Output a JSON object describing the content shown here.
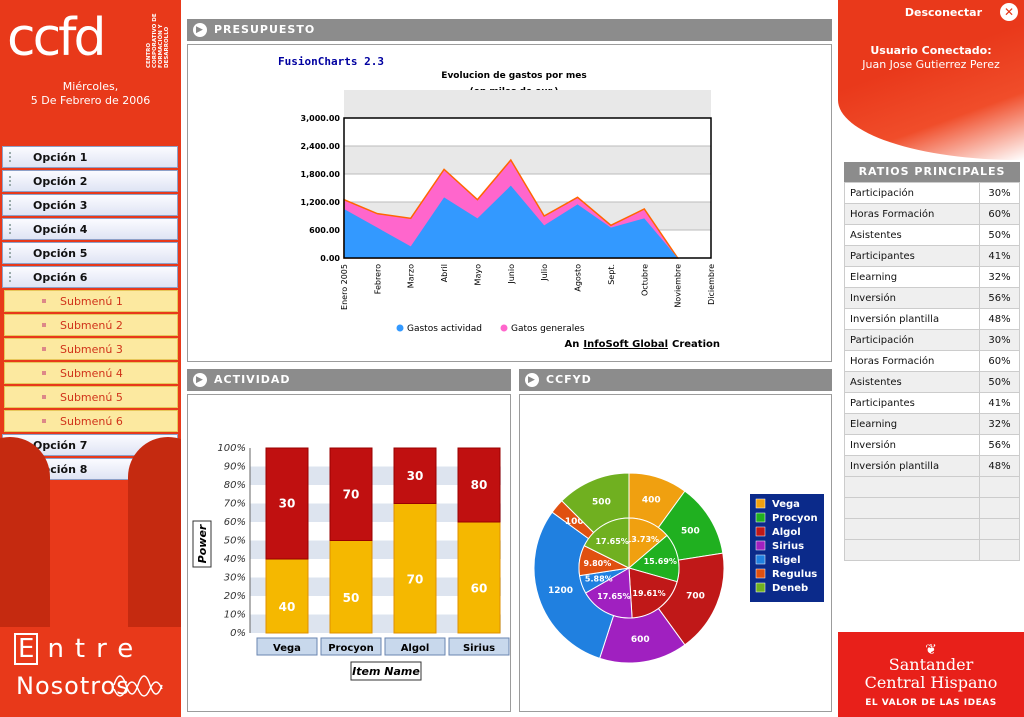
{
  "logo": {
    "main": "ccfd",
    "sub": "CENTRO CORPORATIVO DE FORMACIÓN Y DESARROLLO"
  },
  "date": {
    "line1": "Miércoles,",
    "line2": "5 De Febrero de 2006"
  },
  "menu": [
    {
      "label": "Opción 1"
    },
    {
      "label": "Opción 2"
    },
    {
      "label": "Opción 3"
    },
    {
      "label": "Opción 4"
    },
    {
      "label": "Opción 5"
    },
    {
      "label": "Opción 6"
    }
  ],
  "submenu": [
    {
      "label": "Submenú 1"
    },
    {
      "label": "Submenú 2"
    },
    {
      "label": "Submenú 3"
    },
    {
      "label": "Submenú 4"
    },
    {
      "label": "Submenú 5"
    },
    {
      "label": "Submenú 6"
    }
  ],
  "menu_after": [
    {
      "label": "Opción 7"
    },
    {
      "label": "Opción 8"
    }
  ],
  "brand": {
    "entre_first": "E",
    "entre_rest": "ntre",
    "nosotros": "Nosotros"
  },
  "header": {
    "disconnect": "Desconectar",
    "user_title": "Usuario Conectado:",
    "user_name": "Juan Jose Gutierrez Perez"
  },
  "ratios": {
    "title": "RATIOS PRINCIPALES",
    "rows": [
      {
        "label": "Participación",
        "value": "30%"
      },
      {
        "label": "Horas Formación",
        "value": "60%"
      },
      {
        "label": "Asistentes",
        "value": "50%"
      },
      {
        "label": "Participantes",
        "value": "41%"
      },
      {
        "label": "Elearning",
        "value": "32%"
      },
      {
        "label": "Inversión",
        "value": "56%"
      },
      {
        "label": "Inversión plantilla",
        "value": "48%"
      },
      {
        "label": "Participación",
        "value": "30%"
      },
      {
        "label": "Horas Formación",
        "value": "60%"
      },
      {
        "label": "Asistentes",
        "value": "50%"
      },
      {
        "label": "Participantes",
        "value": "41%"
      },
      {
        "label": "Elearning",
        "value": "32%"
      },
      {
        "label": "Inversión",
        "value": "56%"
      },
      {
        "label": "Inversión plantilla",
        "value": "48%"
      },
      {
        "label": "",
        "value": ""
      },
      {
        "label": "",
        "value": ""
      },
      {
        "label": "",
        "value": ""
      },
      {
        "label": "",
        "value": ""
      }
    ]
  },
  "santander": {
    "name1": "Santander",
    "name2": "Central Hispano",
    "motto": "EL VALOR DE LAS IDEAS"
  },
  "panels": {
    "presupuesto": "PRESUPUESTO",
    "actividad": "ACTIVIDAD",
    "ccfyd": "CCFYD"
  },
  "chart_data": [
    {
      "type": "area",
      "brand": "FusionCharts 2.3",
      "title": "Evolucion de gastos por mes",
      "subtitle": "(en miles de eur.)",
      "categories": [
        "Enero 2005",
        "Febrero",
        "Marzo",
        "Abril",
        "Mayo",
        "Junio",
        "Julio",
        "Agosto",
        "Sept.",
        "Octubre",
        "Noviembre",
        "Diciembre"
      ],
      "series": [
        {
          "name": "Gastos actividad",
          "color": "#3399ff",
          "values": [
            1050,
            650,
            250,
            1300,
            850,
            1550,
            700,
            1150,
            650,
            850,
            0,
            null
          ]
        },
        {
          "name": "Gatos generales",
          "color": "#ff66cc",
          "values": [
            1250,
            950,
            850,
            1900,
            1250,
            2100,
            900,
            1300,
            700,
            1050,
            0,
            null
          ]
        }
      ],
      "ylim": [
        0,
        3000
      ],
      "yticks": [
        "0.00",
        "600.00",
        "1,200.00",
        "1,800.00",
        "2,400.00",
        "3,000.00"
      ],
      "credit_prefix": "An",
      "credit_link": "InfoSoft Global",
      "credit_suffix": "Creation"
    },
    {
      "type": "bar",
      "stacked": true,
      "percent": true,
      "categories": [
        "Vega",
        "Procyon",
        "Algol",
        "Sirius"
      ],
      "series": [
        {
          "name": "bottom",
          "color": "#f5b800",
          "values": [
            40,
            50,
            70,
            60
          ]
        },
        {
          "name": "top",
          "color": "#c01010",
          "values": [
            30,
            70,
            30,
            80
          ]
        }
      ],
      "yticks": [
        "0%",
        "10%",
        "20%",
        "30%",
        "40%",
        "50%",
        "60%",
        "70%",
        "80%",
        "90%",
        "100%"
      ],
      "ylabel": "Power",
      "xlabel": "Item Name"
    },
    {
      "type": "pie",
      "legend": [
        "Vega",
        "Procyon",
        "Algol",
        "Sirius",
        "Rigel",
        "Regulus",
        "Deneb"
      ],
      "colors": [
        "#f0a010",
        "#20b020",
        "#c01818",
        "#a020c0",
        "#2080e0",
        "#e05010",
        "#70b020"
      ],
      "outer": [
        400,
        500,
        700,
        600,
        1200,
        100,
        500
      ],
      "inner": [
        {
          "label": "13.73%",
          "value": 13.73
        },
        {
          "label": "15.69%",
          "value": 15.69
        },
        {
          "label": "19.61%",
          "value": 19.61
        },
        {
          "label": "17.65%",
          "value": 17.65
        },
        {
          "label": "5.88%",
          "value": 5.88
        },
        {
          "label": "9.80%",
          "value": 9.8
        },
        {
          "label": "17.65%",
          "value": 17.65
        }
      ]
    }
  ]
}
